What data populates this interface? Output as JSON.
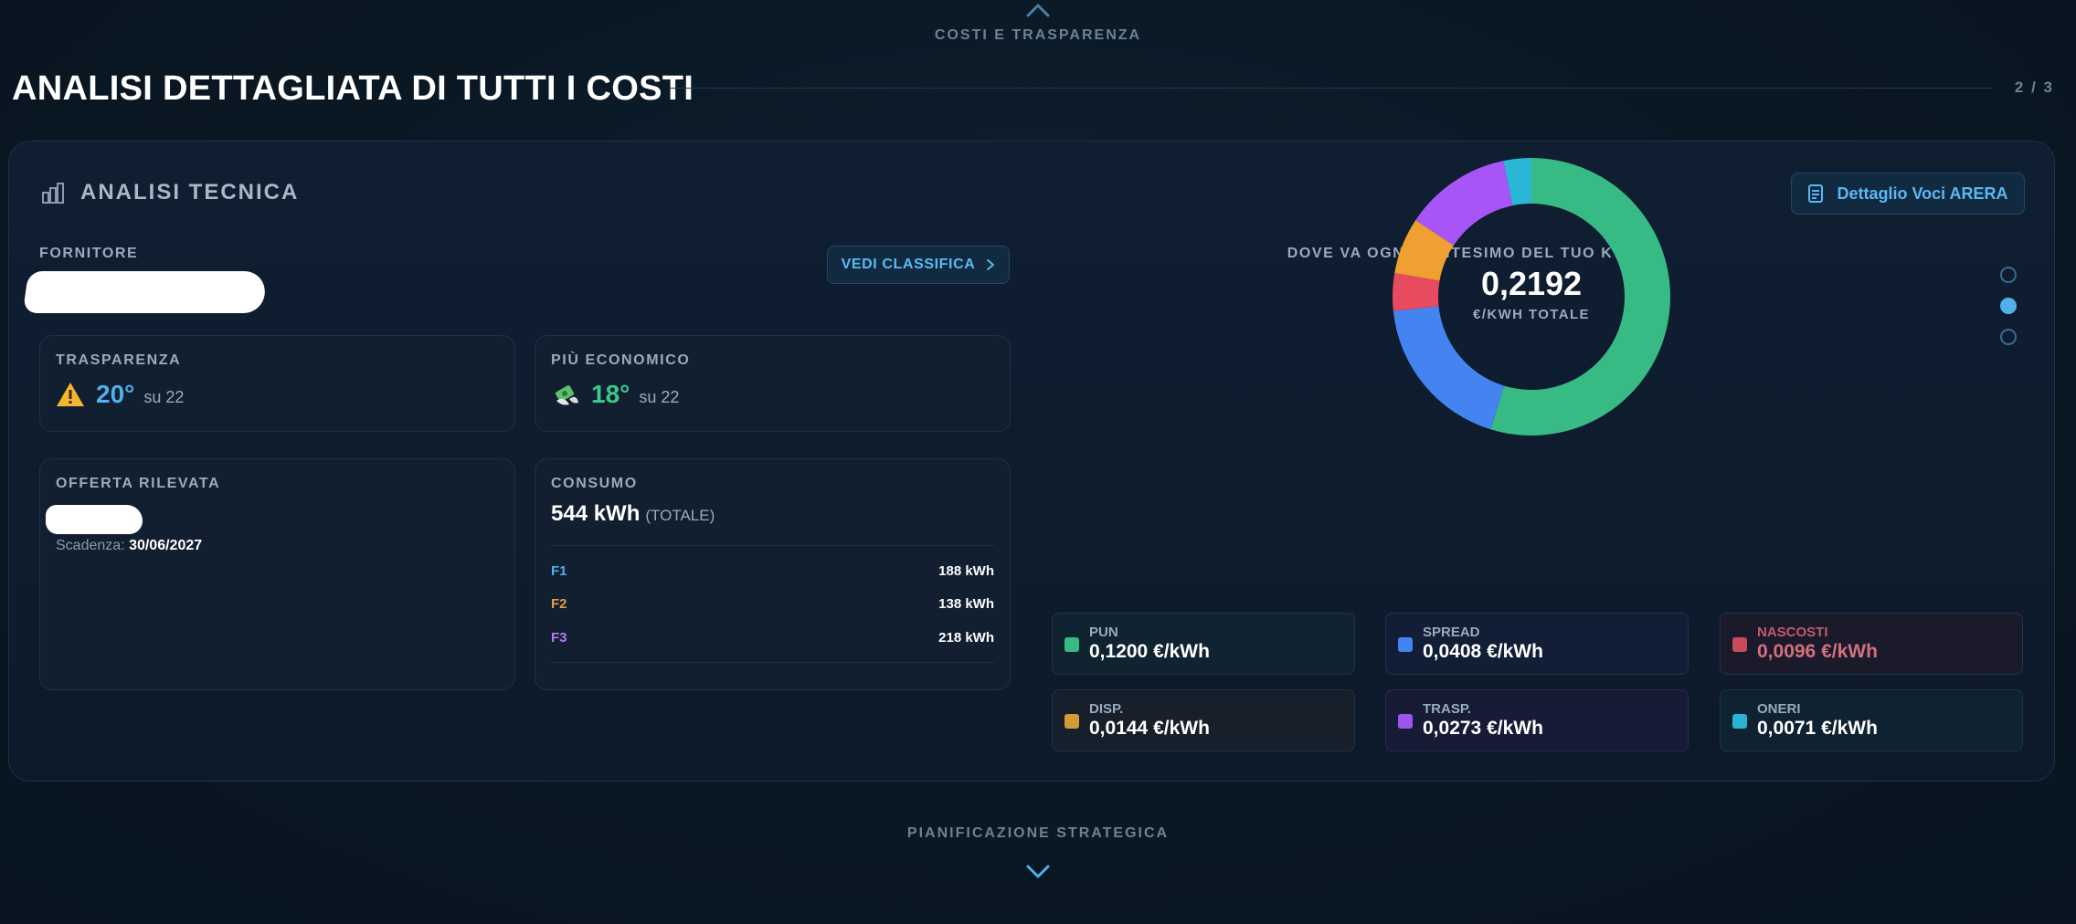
{
  "nav": {
    "prev_label": "COSTI E TRASPARENZA",
    "next_label": "PIANIFICAZIONE STRATEGICA"
  },
  "page": {
    "title": "ANALISI DETTAGLIATA DI TUTTI I COSTI",
    "count": "2 / 3"
  },
  "card": {
    "title": "ANALISI TECNICA",
    "arera_button": "Dettaglio Voci ARERA"
  },
  "supplier": {
    "label": "FORNITORE",
    "name": "",
    "classifica_button": "VEDI CLASSIFICA"
  },
  "trasparenza": {
    "label": "TRASPARENZA",
    "rank": "20°",
    "of": "su 22",
    "color": "#4fb0ec"
  },
  "economico": {
    "label": "PIÙ ECONOMICO",
    "rank": "18°",
    "of": "su 22",
    "color": "#3dc88a"
  },
  "offerta": {
    "label": "OFFERTA RILEVATA",
    "name": "",
    "expiry_label": "Scadenza:",
    "expiry_value": "30/06/2027"
  },
  "consumo": {
    "label": "CONSUMO",
    "value": "544 kWh",
    "total_label": "(TOTALE)",
    "fasce": [
      {
        "name": "F1",
        "value": "188 kWh",
        "color": "#4fb0ec"
      },
      {
        "name": "F2",
        "value": "138 kWh",
        "color": "#e0a040"
      },
      {
        "name": "F3",
        "value": "218 kWh",
        "color": "#b07af0"
      }
    ]
  },
  "breakdown": {
    "title": "DOVE VA OGNI CENTESIMO DEL TUO KWH",
    "total": "0,2192",
    "total_unit": "€/KWH TOTALE",
    "items": [
      {
        "name": "PUN",
        "value": "0,1200 €/kWh",
        "color": "#38ba84",
        "bg": "#0f2330",
        "name_color": "#9aabbd",
        "value_color": "#ffffff"
      },
      {
        "name": "SPREAD",
        "value": "0,0408 €/kWh",
        "color": "#4384f0",
        "bg": "#111e36",
        "name_color": "#9aabbd",
        "value_color": "#ffffff"
      },
      {
        "name": "NASCOSTI",
        "value": "0,0096 €/kWh",
        "color": "#c94b5c",
        "bg": "#1a1a2a",
        "name_color": "#c25a68",
        "value_color": "#d4707e"
      },
      {
        "name": "DISP.",
        "value": "0,0144 €/kWh",
        "color": "#d49a3a",
        "bg": "#171f2a",
        "name_color": "#9aabbd",
        "value_color": "#ffffff"
      },
      {
        "name": "TRASP.",
        "value": "0,0273 €/kWh",
        "color": "#9d55ec",
        "bg": "#181b35",
        "name_color": "#9aabbd",
        "value_color": "#ffffff"
      },
      {
        "name": "ONERI",
        "value": "0,0071 €/kWh",
        "color": "#2ab3d0",
        "bg": "#0f2231",
        "name_color": "#9aabbd",
        "value_color": "#ffffff"
      }
    ]
  },
  "chart_data": {
    "type": "pie",
    "categories": [
      "PUN",
      "SPREAD",
      "NASCOSTI",
      "DISP.",
      "TRASP.",
      "ONERI"
    ],
    "values": [
      0.12,
      0.0408,
      0.0096,
      0.0144,
      0.0273,
      0.0071
    ],
    "colors": [
      "#38ba84",
      "#4384f0",
      "#e84a5f",
      "#f0a030",
      "#a855f7",
      "#2ab6d6"
    ],
    "title": "DOVE VA OGNI CENTESIMO DEL TUO KWH"
  },
  "pager": {
    "pages": 3,
    "active": 1
  }
}
